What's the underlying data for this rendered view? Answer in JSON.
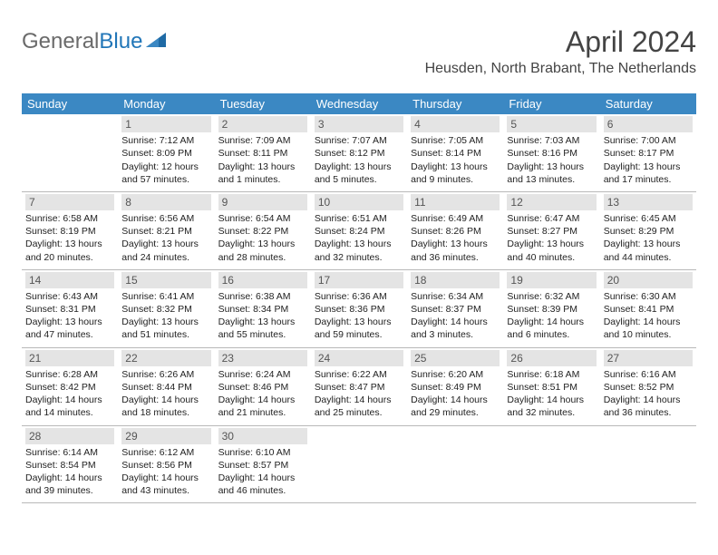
{
  "logo": {
    "gray": "General",
    "blue": "Blue"
  },
  "title": "April 2024",
  "location": "Heusden, North Brabant, The Netherlands",
  "colors": {
    "header_bg": "#3b88c3",
    "daynum_bg": "#e4e4e4",
    "page_bg": "#ffffff",
    "text": "#222222",
    "logo_gray": "#6a6a6a",
    "logo_blue": "#2176b8"
  },
  "days_of_week": [
    "Sunday",
    "Monday",
    "Tuesday",
    "Wednesday",
    "Thursday",
    "Friday",
    "Saturday"
  ],
  "weeks": [
    [
      {
        "empty": true
      },
      {
        "num": "1",
        "sunrise": "Sunrise: 7:12 AM",
        "sunset": "Sunset: 8:09 PM",
        "d1": "Daylight: 12 hours",
        "d2": "and 57 minutes."
      },
      {
        "num": "2",
        "sunrise": "Sunrise: 7:09 AM",
        "sunset": "Sunset: 8:11 PM",
        "d1": "Daylight: 13 hours",
        "d2": "and 1 minutes."
      },
      {
        "num": "3",
        "sunrise": "Sunrise: 7:07 AM",
        "sunset": "Sunset: 8:12 PM",
        "d1": "Daylight: 13 hours",
        "d2": "and 5 minutes."
      },
      {
        "num": "4",
        "sunrise": "Sunrise: 7:05 AM",
        "sunset": "Sunset: 8:14 PM",
        "d1": "Daylight: 13 hours",
        "d2": "and 9 minutes."
      },
      {
        "num": "5",
        "sunrise": "Sunrise: 7:03 AM",
        "sunset": "Sunset: 8:16 PM",
        "d1": "Daylight: 13 hours",
        "d2": "and 13 minutes."
      },
      {
        "num": "6",
        "sunrise": "Sunrise: 7:00 AM",
        "sunset": "Sunset: 8:17 PM",
        "d1": "Daylight: 13 hours",
        "d2": "and 17 minutes."
      }
    ],
    [
      {
        "num": "7",
        "sunrise": "Sunrise: 6:58 AM",
        "sunset": "Sunset: 8:19 PM",
        "d1": "Daylight: 13 hours",
        "d2": "and 20 minutes."
      },
      {
        "num": "8",
        "sunrise": "Sunrise: 6:56 AM",
        "sunset": "Sunset: 8:21 PM",
        "d1": "Daylight: 13 hours",
        "d2": "and 24 minutes."
      },
      {
        "num": "9",
        "sunrise": "Sunrise: 6:54 AM",
        "sunset": "Sunset: 8:22 PM",
        "d1": "Daylight: 13 hours",
        "d2": "and 28 minutes."
      },
      {
        "num": "10",
        "sunrise": "Sunrise: 6:51 AM",
        "sunset": "Sunset: 8:24 PM",
        "d1": "Daylight: 13 hours",
        "d2": "and 32 minutes."
      },
      {
        "num": "11",
        "sunrise": "Sunrise: 6:49 AM",
        "sunset": "Sunset: 8:26 PM",
        "d1": "Daylight: 13 hours",
        "d2": "and 36 minutes."
      },
      {
        "num": "12",
        "sunrise": "Sunrise: 6:47 AM",
        "sunset": "Sunset: 8:27 PM",
        "d1": "Daylight: 13 hours",
        "d2": "and 40 minutes."
      },
      {
        "num": "13",
        "sunrise": "Sunrise: 6:45 AM",
        "sunset": "Sunset: 8:29 PM",
        "d1": "Daylight: 13 hours",
        "d2": "and 44 minutes."
      }
    ],
    [
      {
        "num": "14",
        "sunrise": "Sunrise: 6:43 AM",
        "sunset": "Sunset: 8:31 PM",
        "d1": "Daylight: 13 hours",
        "d2": "and 47 minutes."
      },
      {
        "num": "15",
        "sunrise": "Sunrise: 6:41 AM",
        "sunset": "Sunset: 8:32 PM",
        "d1": "Daylight: 13 hours",
        "d2": "and 51 minutes."
      },
      {
        "num": "16",
        "sunrise": "Sunrise: 6:38 AM",
        "sunset": "Sunset: 8:34 PM",
        "d1": "Daylight: 13 hours",
        "d2": "and 55 minutes."
      },
      {
        "num": "17",
        "sunrise": "Sunrise: 6:36 AM",
        "sunset": "Sunset: 8:36 PM",
        "d1": "Daylight: 13 hours",
        "d2": "and 59 minutes."
      },
      {
        "num": "18",
        "sunrise": "Sunrise: 6:34 AM",
        "sunset": "Sunset: 8:37 PM",
        "d1": "Daylight: 14 hours",
        "d2": "and 3 minutes."
      },
      {
        "num": "19",
        "sunrise": "Sunrise: 6:32 AM",
        "sunset": "Sunset: 8:39 PM",
        "d1": "Daylight: 14 hours",
        "d2": "and 6 minutes."
      },
      {
        "num": "20",
        "sunrise": "Sunrise: 6:30 AM",
        "sunset": "Sunset: 8:41 PM",
        "d1": "Daylight: 14 hours",
        "d2": "and 10 minutes."
      }
    ],
    [
      {
        "num": "21",
        "sunrise": "Sunrise: 6:28 AM",
        "sunset": "Sunset: 8:42 PM",
        "d1": "Daylight: 14 hours",
        "d2": "and 14 minutes."
      },
      {
        "num": "22",
        "sunrise": "Sunrise: 6:26 AM",
        "sunset": "Sunset: 8:44 PM",
        "d1": "Daylight: 14 hours",
        "d2": "and 18 minutes."
      },
      {
        "num": "23",
        "sunrise": "Sunrise: 6:24 AM",
        "sunset": "Sunset: 8:46 PM",
        "d1": "Daylight: 14 hours",
        "d2": "and 21 minutes."
      },
      {
        "num": "24",
        "sunrise": "Sunrise: 6:22 AM",
        "sunset": "Sunset: 8:47 PM",
        "d1": "Daylight: 14 hours",
        "d2": "and 25 minutes."
      },
      {
        "num": "25",
        "sunrise": "Sunrise: 6:20 AM",
        "sunset": "Sunset: 8:49 PM",
        "d1": "Daylight: 14 hours",
        "d2": "and 29 minutes."
      },
      {
        "num": "26",
        "sunrise": "Sunrise: 6:18 AM",
        "sunset": "Sunset: 8:51 PM",
        "d1": "Daylight: 14 hours",
        "d2": "and 32 minutes."
      },
      {
        "num": "27",
        "sunrise": "Sunrise: 6:16 AM",
        "sunset": "Sunset: 8:52 PM",
        "d1": "Daylight: 14 hours",
        "d2": "and 36 minutes."
      }
    ],
    [
      {
        "num": "28",
        "sunrise": "Sunrise: 6:14 AM",
        "sunset": "Sunset: 8:54 PM",
        "d1": "Daylight: 14 hours",
        "d2": "and 39 minutes."
      },
      {
        "num": "29",
        "sunrise": "Sunrise: 6:12 AM",
        "sunset": "Sunset: 8:56 PM",
        "d1": "Daylight: 14 hours",
        "d2": "and 43 minutes."
      },
      {
        "num": "30",
        "sunrise": "Sunrise: 6:10 AM",
        "sunset": "Sunset: 8:57 PM",
        "d1": "Daylight: 14 hours",
        "d2": "and 46 minutes."
      },
      {
        "empty": true
      },
      {
        "empty": true
      },
      {
        "empty": true
      },
      {
        "empty": true
      }
    ]
  ]
}
